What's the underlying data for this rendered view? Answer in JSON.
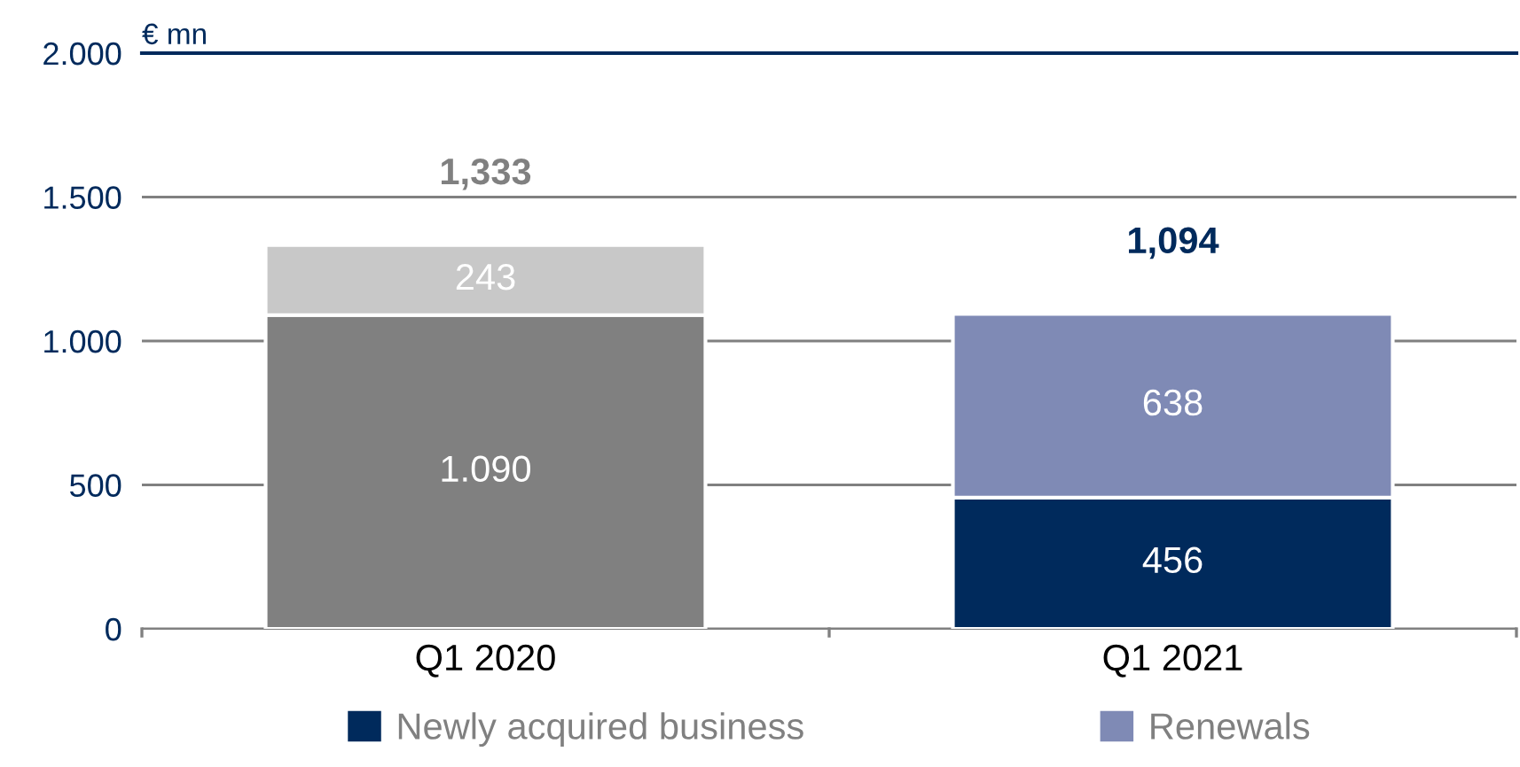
{
  "chart_data": {
    "type": "bar",
    "stacked": true,
    "ylabel": "€ mn",
    "categories": [
      "Q1 2020",
      "Q1 2021"
    ],
    "series": [
      {
        "name": "Newly acquired business",
        "color": "#002a5c",
        "colors": [
          "#808080",
          "#002a5c"
        ],
        "values": [
          1090,
          456
        ],
        "value_labels": [
          "1.090",
          "456"
        ]
      },
      {
        "name": "Renewals",
        "color": "#7f8ab5",
        "colors": [
          "#c8c8c8",
          "#7f8ab5"
        ],
        "values": [
          243,
          638
        ],
        "value_labels": [
          "243",
          "638"
        ]
      }
    ],
    "annotations": [
      {
        "text": "1,333",
        "x": "Q1 2020",
        "y": 1333
      },
      {
        "text": "1,094",
        "x": "Q1 2021",
        "y": 1094
      }
    ],
    "ylim": [
      0,
      2000
    ],
    "yticks": [
      {
        "value": 0,
        "label": "0"
      },
      {
        "value": 500,
        "label": "500"
      },
      {
        "value": 1000,
        "label": "1.000"
      },
      {
        "value": 1500,
        "label": "1.500"
      },
      {
        "value": 2000,
        "label": "2.000"
      }
    ],
    "grid": "y",
    "legend": "bottom"
  }
}
